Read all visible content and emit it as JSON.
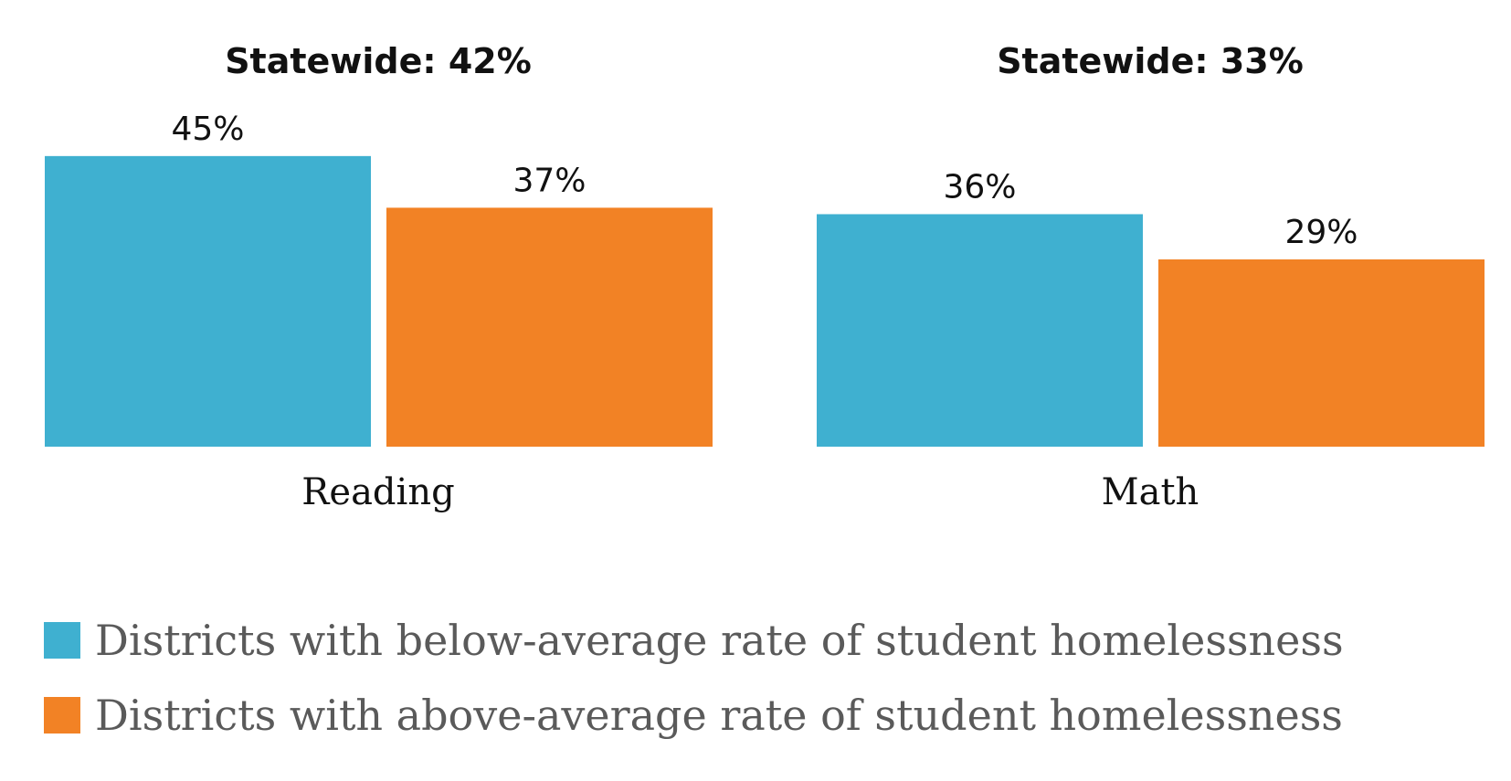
{
  "chart_data": {
    "type": "bar",
    "categories": [
      "Reading",
      "Math"
    ],
    "group_titles": [
      "Statewide: 42%",
      "Statewide: 33%"
    ],
    "series": [
      {
        "name": "Districts with below-average rate of student homelessness",
        "color": "#3FB0D0",
        "values": [
          45,
          36
        ],
        "labels": [
          "45%",
          "36%"
        ]
      },
      {
        "name": "Districts with above-average rate of student homelessness",
        "color": "#F28225",
        "values": [
          37,
          29
        ],
        "labels": [
          "37%",
          "29%"
        ]
      }
    ],
    "ylim": [
      0,
      45
    ],
    "xlabel": "",
    "ylabel": "",
    "grid": false,
    "legend_position": "bottom-left"
  }
}
